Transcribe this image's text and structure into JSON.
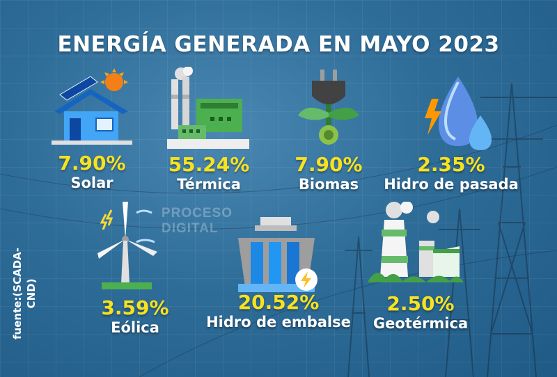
{
  "title": "ENERGÍA GENERADA EN MAYO 2023",
  "source": "fuente:(SCADA-CND)",
  "watermark": {
    "brand_line1": "PROCESO",
    "brand_line2": "DIGITAL"
  },
  "items": [
    {
      "id": "solar",
      "label": "Solar",
      "value": "7.90%",
      "icon": "solar-house-icon"
    },
    {
      "id": "termica",
      "label": "Térmica",
      "value": "55.24%",
      "icon": "thermal-plant-icon"
    },
    {
      "id": "biomas",
      "label": "Biomas",
      "value": "7.90%",
      "icon": "biomass-plug-icon"
    },
    {
      "id": "hidro-pasada",
      "label": "Hidro de pasada",
      "value": "2.35%",
      "icon": "water-drop-lightning-icon"
    },
    {
      "id": "eolica",
      "label": "Eólica",
      "value": "3.59%",
      "icon": "wind-turbine-icon"
    },
    {
      "id": "hidro-embalse",
      "label": "Hidro de embalse",
      "value": "20.52%",
      "icon": "dam-icon"
    },
    {
      "id": "geotermica",
      "label": "Geotérmica",
      "value": "2.50%",
      "icon": "geothermal-plant-icon"
    }
  ],
  "colors": {
    "accent": "#f8e21e",
    "text": "#ffffff",
    "background": "#2f6d99"
  }
}
